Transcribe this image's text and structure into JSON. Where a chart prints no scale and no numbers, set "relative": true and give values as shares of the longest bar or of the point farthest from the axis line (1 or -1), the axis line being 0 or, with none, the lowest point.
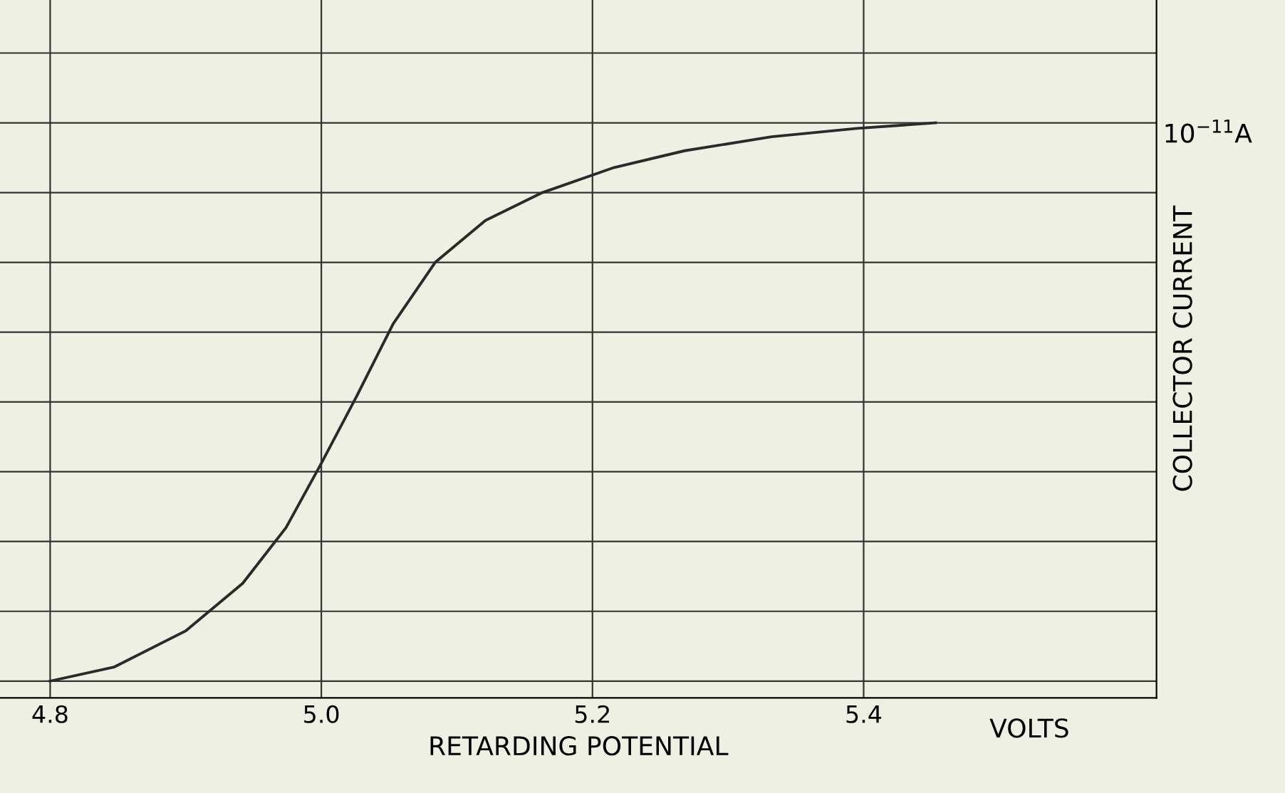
{
  "chart_data": {
    "type": "line",
    "relative": true,
    "xlabel": "RETARDING POTENTIAL",
    "ylabel": "COLLECTOR CURRENT",
    "annotations": [
      "10$^{−11}$A",
      "VOLTS"
    ],
    "x": [
      4.8,
      4.847,
      4.9,
      4.942,
      4.974,
      5.0,
      5.026,
      5.053,
      5.084,
      5.121,
      5.163,
      5.216,
      5.268,
      5.332,
      5.395,
      5.453
    ],
    "series": [
      {
        "color": "#2a2a2a",
        "values": [
          0,
          0.025,
          0.09,
          0.175,
          0.275,
          0.39,
          0.51,
          0.64,
          0.75,
          0.825,
          0.875,
          0.92,
          0.95,
          0.975,
          0.99,
          1.0
        ]
      }
    ],
    "xlim": [
      4.763,
      5.616
    ],
    "xticks": [
      4.8,
      {
        "value": 5.0,
        "label": "5.0"
      },
      5.2,
      5.4
    ],
    "grid": true,
    "tick_labels": "x",
    "marker": "none",
    "line_style": "solid"
  }
}
